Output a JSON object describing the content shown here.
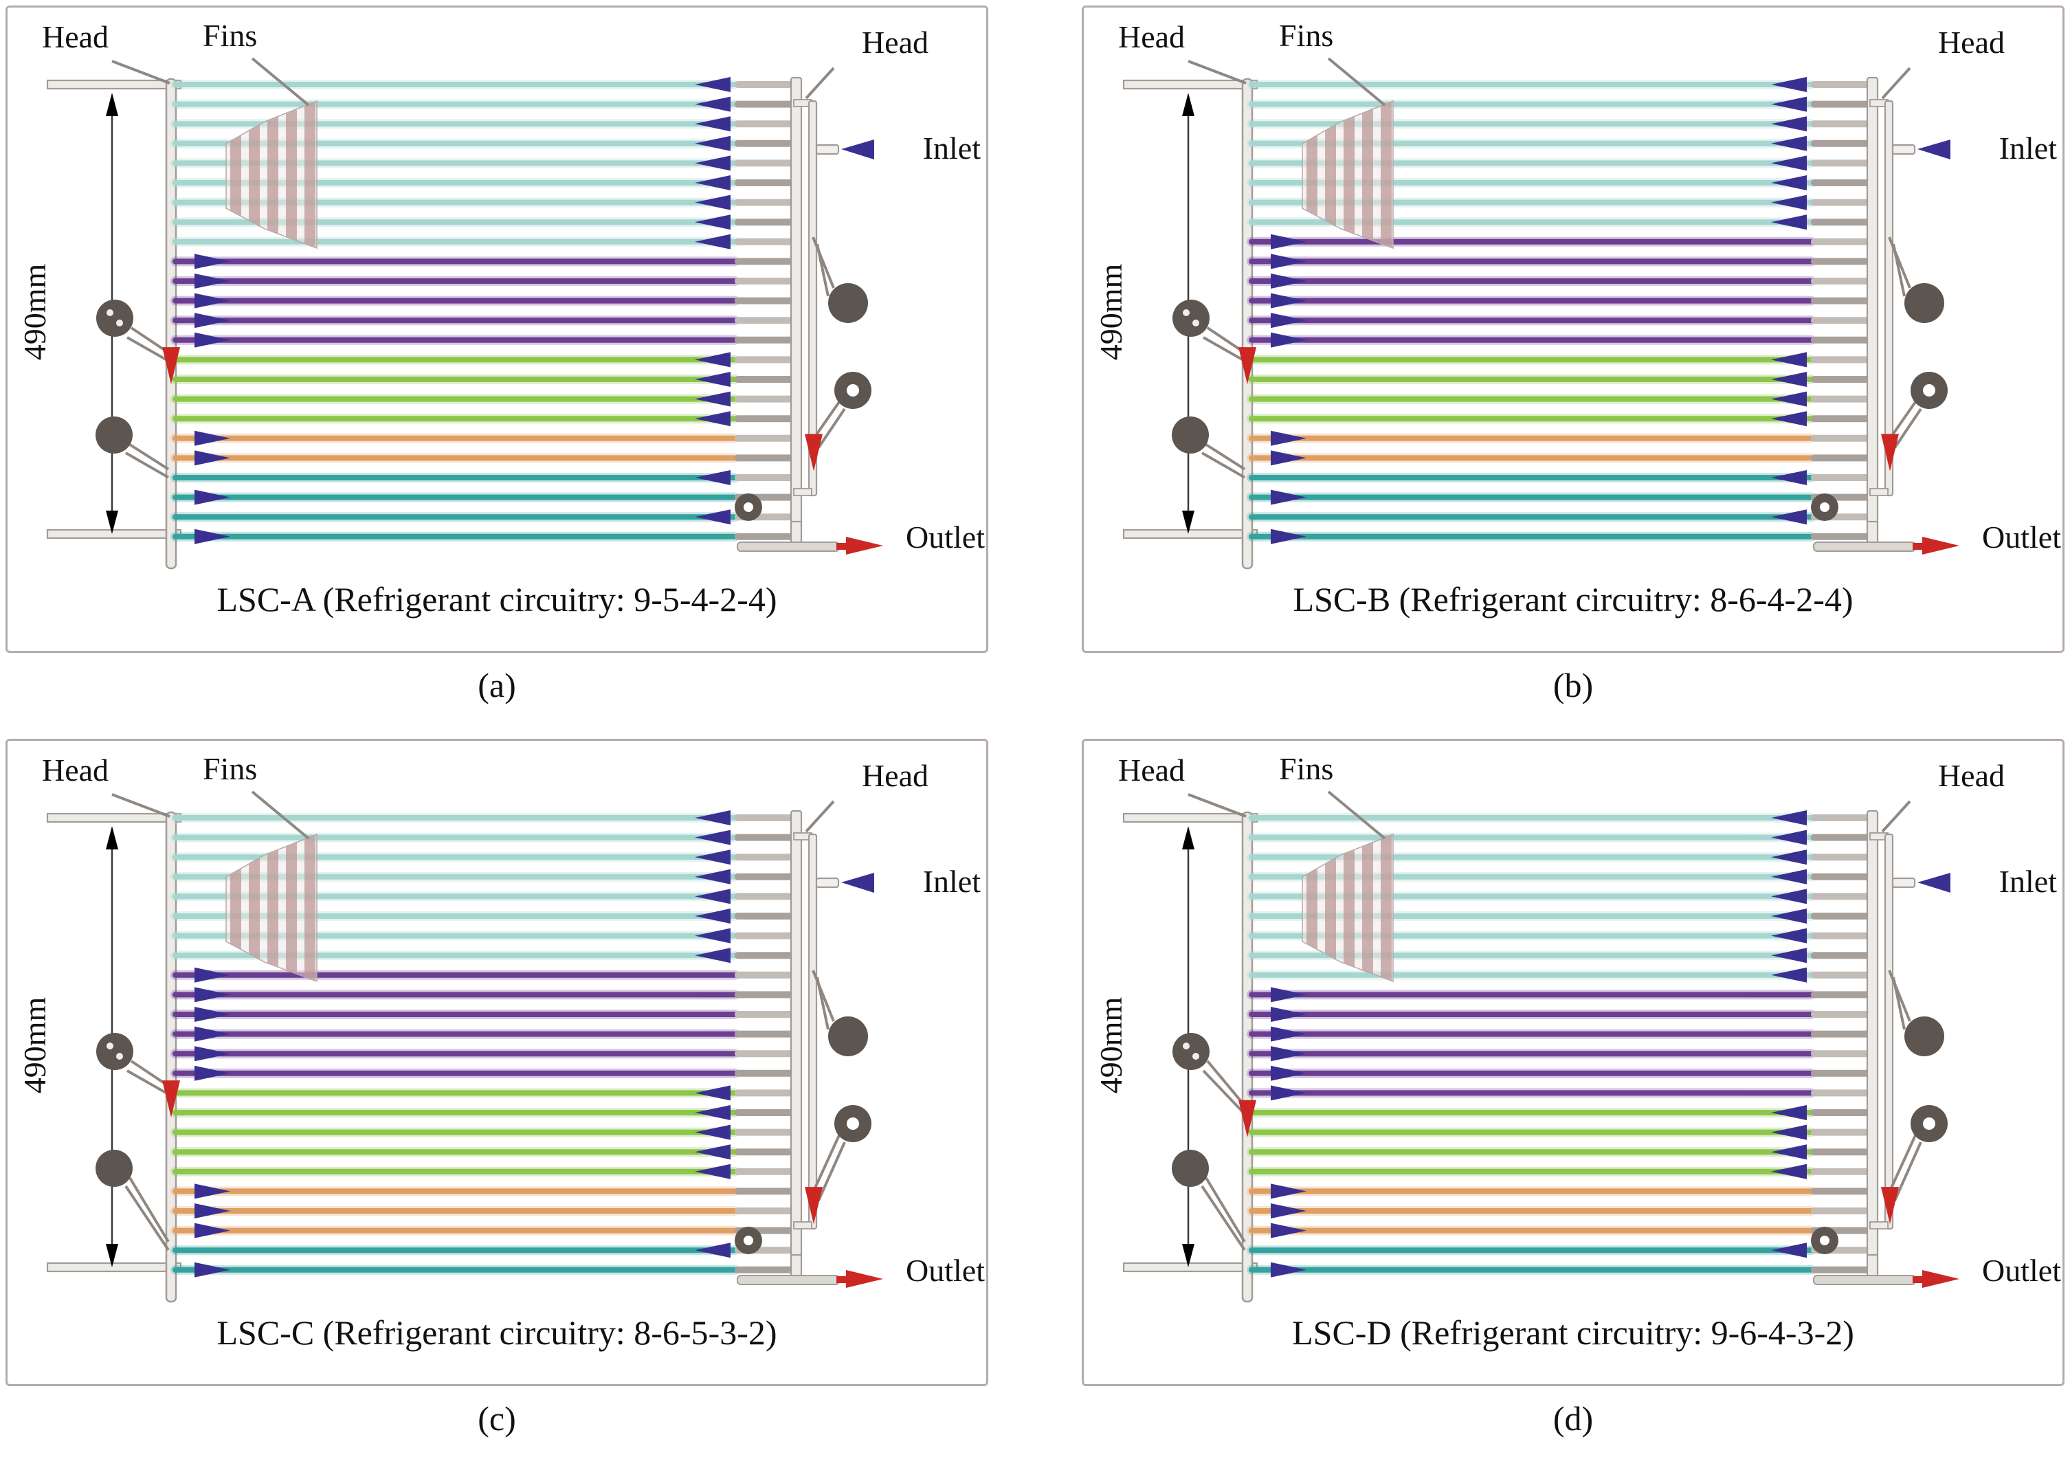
{
  "labels": {
    "head": "Head",
    "fins": "Fins",
    "inlet": "Inlet",
    "outlet": "Outlet",
    "dimension": "490mm"
  },
  "panels": [
    {
      "letter": "(a)",
      "caption": "LSC-A (Refrigerant circuitry: 9-5-4-2-4)",
      "circuitry": [
        9,
        5,
        4,
        2,
        4
      ]
    },
    {
      "letter": "(b)",
      "caption": "LSC-B (Refrigerant circuitry: 8-6-4-2-4)",
      "circuitry": [
        8,
        6,
        4,
        2,
        4
      ]
    },
    {
      "letter": "(c)",
      "caption": "LSC-C (Refrigerant circuitry: 8-6-5-3-2)",
      "circuitry": [
        8,
        6,
        5,
        3,
        2
      ]
    },
    {
      "letter": "(d)",
      "caption": "LSC-D (Refrigerant circuitry: 9-6-4-3-2)",
      "circuitry": [
        9,
        6,
        4,
        3,
        2
      ]
    }
  ],
  "colors": {
    "tube_sections": [
      "#a6d6d0",
      "#6b3e92",
      "#8cc64a",
      "#df9f63",
      "#35a39d"
    ],
    "flow_arrow": "#3a3091",
    "phase_marker": "#cc2722",
    "structure": "#a29b96",
    "structure_fill": "#edebe8",
    "rung_light": "#c2bcb7",
    "rung_dark": "#a8a19b",
    "leader": "#8f8882",
    "fins_stripe": "#c3a4a3",
    "fins_gap": "#efe8e6",
    "fitting": "#5d5650",
    "dimension_line": "#3a3a3a",
    "panel_border": "#b5aca7",
    "text": "#111111"
  }
}
